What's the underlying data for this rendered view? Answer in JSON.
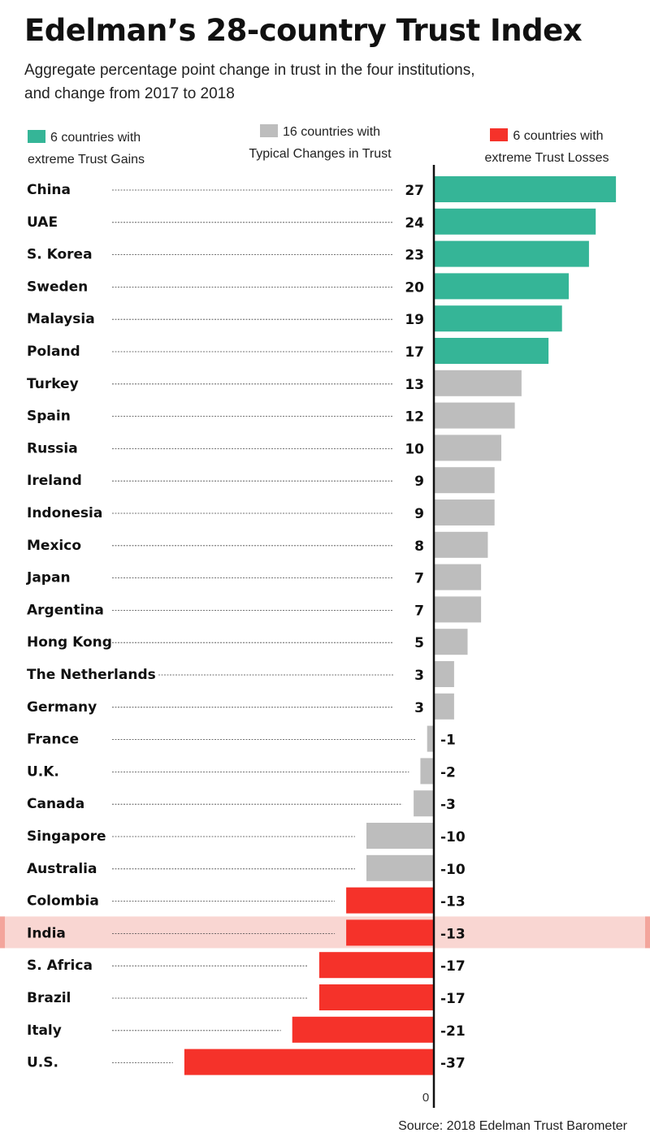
{
  "title": "Edelman’s 28-country Trust Index",
  "subtitle_line1": "Aggregate percentage point change in trust in the four institutions,",
  "subtitle_line2": "and change from 2017 to 2018",
  "legend": {
    "gain": {
      "line1": "6 countries with",
      "line2": "extreme Trust Gains",
      "color": "#35b597"
    },
    "typical": {
      "line1": "16 countries with",
      "line2": "Typical Changes in Trust",
      "color": "#bdbdbd"
    },
    "loss": {
      "line1": "6 countries with",
      "line2": "extreme Trust Losses",
      "color": "#f5322a"
    }
  },
  "source": "Source: 2018 Edelman Trust Barometer",
  "highlight_color": "#f9d6d2",
  "chart_data": {
    "type": "bar",
    "orientation": "horizontal",
    "title": "Edelman’s 28-country Trust Index",
    "categories": [
      "China",
      "UAE",
      "S. Korea",
      "Sweden",
      "Malaysia",
      "Poland",
      "Turkey",
      "Spain",
      "Russia",
      "Ireland",
      "Indonesia",
      "Mexico",
      "Japan",
      "Argentina",
      "Hong Kong",
      "The Netherlands",
      "Germany",
      "France",
      "U.K.",
      "Canada",
      "Singapore",
      "Australia",
      "Colombia",
      "India",
      "S. Africa",
      "Brazil",
      "Italy",
      "U.S."
    ],
    "values": [
      27,
      24,
      23,
      20,
      19,
      17,
      13,
      12,
      10,
      9,
      9,
      8,
      7,
      7,
      5,
      3,
      3,
      -1,
      -2,
      -3,
      -10,
      -10,
      -13,
      -13,
      -17,
      -17,
      -21,
      -37
    ],
    "groups": [
      "gain",
      "gain",
      "gain",
      "gain",
      "gain",
      "gain",
      "typical",
      "typical",
      "typical",
      "typical",
      "typical",
      "typical",
      "typical",
      "typical",
      "typical",
      "typical",
      "typical",
      "typical",
      "typical",
      "typical",
      "typical",
      "typical",
      "loss",
      "loss",
      "loss",
      "loss",
      "loss",
      "loss"
    ],
    "highlighted": [
      "India"
    ],
    "zero_label": "0",
    "xlim": [
      -37,
      27
    ]
  }
}
